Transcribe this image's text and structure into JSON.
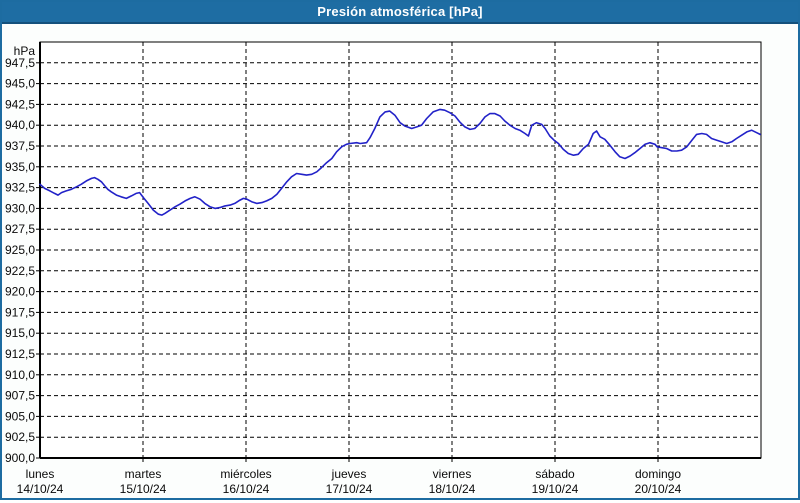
{
  "window": {
    "title": "Presión atmosférica [hPa]"
  },
  "colors": {
    "titlebar_bg": "#1e6da3",
    "titlebar_edge": "#14517c",
    "frame_border": "#1d6ca1",
    "page_bg": "#fcfefd",
    "plot_bg": "#ffffff",
    "grid": "#000000",
    "axis": "#000000",
    "line": "#2222c8",
    "text": "#0a0a0a"
  },
  "chart_data": {
    "type": "line",
    "title": "Presión atmosférica [hPa]",
    "ylabel": "hPa",
    "xlabel": "",
    "ylim": [
      900,
      950
    ],
    "ytick_step": 2.5,
    "grid": "dashed",
    "legend": "none",
    "decimal_separator": ",",
    "ytick_labels": [
      "947,5",
      "945,0",
      "942,5",
      "940,0",
      "937,5",
      "935,0",
      "932,5",
      "930,0",
      "927,5",
      "925,0",
      "922,5",
      "920,0",
      "917,5",
      "915,0",
      "912,5",
      "910,0",
      "907,5",
      "905,0",
      "902,5",
      "900,0"
    ],
    "x_hours_total": 168,
    "x_categories": [
      {
        "day": "lunes",
        "date": "14/10/24"
      },
      {
        "day": "martes",
        "date": "15/10/24"
      },
      {
        "day": "miércoles",
        "date": "16/10/24"
      },
      {
        "day": "jueves",
        "date": "17/10/24"
      },
      {
        "day": "viernes",
        "date": "18/10/24"
      },
      {
        "day": "sábado",
        "date": "19/10/24"
      },
      {
        "day": "domingo",
        "date": "20/10/24"
      }
    ],
    "series": [
      {
        "name": "Presión atmosférica",
        "unit": "hPa",
        "points": [
          [
            0.0,
            932.9
          ],
          [
            1.1,
            932.4
          ],
          [
            2.3,
            932.1
          ],
          [
            3.4,
            931.8
          ],
          [
            4.2,
            931.6
          ],
          [
            5.0,
            931.9
          ],
          [
            6.1,
            932.1
          ],
          [
            7.3,
            932.3
          ],
          [
            8.5,
            932.6
          ],
          [
            9.6,
            932.9
          ],
          [
            10.8,
            933.3
          ],
          [
            12.0,
            933.6
          ],
          [
            12.7,
            933.7
          ],
          [
            13.5,
            933.5
          ],
          [
            14.3,
            933.2
          ],
          [
            15.1,
            932.7
          ],
          [
            15.8,
            932.3
          ],
          [
            16.6,
            932.0
          ],
          [
            17.8,
            931.6
          ],
          [
            18.9,
            931.4
          ],
          [
            20.1,
            931.2
          ],
          [
            21.3,
            931.5
          ],
          [
            22.4,
            931.8
          ],
          [
            23.2,
            931.9
          ],
          [
            24.1,
            931.3
          ],
          [
            25.2,
            930.6
          ],
          [
            26.4,
            929.8
          ],
          [
            27.6,
            929.3
          ],
          [
            28.4,
            929.2
          ],
          [
            29.1,
            929.4
          ],
          [
            30.3,
            929.8
          ],
          [
            31.5,
            930.2
          ],
          [
            32.6,
            930.5
          ],
          [
            33.8,
            930.9
          ],
          [
            35.0,
            931.2
          ],
          [
            36.1,
            931.4
          ],
          [
            37.3,
            931.1
          ],
          [
            38.4,
            930.6
          ],
          [
            39.6,
            930.2
          ],
          [
            40.8,
            930.0
          ],
          [
            41.9,
            930.1
          ],
          [
            43.1,
            930.3
          ],
          [
            44.3,
            930.4
          ],
          [
            45.4,
            930.6
          ],
          [
            46.6,
            931.0
          ],
          [
            47.4,
            931.2
          ],
          [
            48.2,
            931.1
          ],
          [
            49.3,
            930.8
          ],
          [
            50.5,
            930.6
          ],
          [
            51.7,
            930.7
          ],
          [
            52.8,
            930.9
          ],
          [
            54.0,
            931.2
          ],
          [
            55.2,
            931.7
          ],
          [
            56.3,
            932.4
          ],
          [
            57.5,
            933.2
          ],
          [
            58.6,
            933.8
          ],
          [
            59.8,
            934.2
          ],
          [
            61.0,
            934.1
          ],
          [
            62.1,
            934.0
          ],
          [
            63.3,
            934.1
          ],
          [
            64.5,
            934.4
          ],
          [
            65.6,
            934.9
          ],
          [
            66.8,
            935.5
          ],
          [
            68.0,
            936.0
          ],
          [
            69.1,
            936.8
          ],
          [
            70.3,
            937.4
          ],
          [
            71.4,
            937.7
          ],
          [
            72.2,
            937.8
          ],
          [
            73.8,
            937.9
          ],
          [
            74.6,
            937.8
          ],
          [
            76.1,
            937.9
          ],
          [
            76.9,
            938.5
          ],
          [
            78.0,
            939.6
          ],
          [
            79.2,
            941.0
          ],
          [
            80.4,
            941.6
          ],
          [
            81.5,
            941.7
          ],
          [
            82.7,
            941.2
          ],
          [
            83.9,
            940.3
          ],
          [
            85.0,
            939.9
          ],
          [
            86.6,
            939.6
          ],
          [
            87.8,
            939.8
          ],
          [
            88.9,
            940.0
          ],
          [
            90.1,
            940.8
          ],
          [
            91.6,
            941.6
          ],
          [
            93.2,
            941.9
          ],
          [
            94.3,
            941.8
          ],
          [
            95.5,
            941.5
          ],
          [
            96.7,
            941.1
          ],
          [
            97.8,
            940.4
          ],
          [
            99.0,
            939.8
          ],
          [
            100.2,
            939.5
          ],
          [
            101.3,
            939.6
          ],
          [
            102.5,
            940.2
          ],
          [
            103.7,
            941.0
          ],
          [
            104.8,
            941.4
          ],
          [
            106.0,
            941.4
          ],
          [
            107.2,
            941.1
          ],
          [
            108.3,
            940.5
          ],
          [
            109.5,
            940.0
          ],
          [
            110.7,
            939.6
          ],
          [
            111.8,
            939.4
          ],
          [
            113.0,
            939.0
          ],
          [
            113.8,
            938.7
          ],
          [
            114.6,
            940.0
          ],
          [
            115.7,
            940.3
          ],
          [
            116.9,
            940.1
          ],
          [
            117.7,
            939.6
          ],
          [
            118.8,
            938.7
          ],
          [
            119.8,
            938.2
          ],
          [
            120.8,
            937.8
          ],
          [
            121.9,
            937.1
          ],
          [
            123.1,
            936.6
          ],
          [
            124.3,
            936.4
          ],
          [
            125.4,
            936.5
          ],
          [
            126.6,
            937.2
          ],
          [
            127.8,
            937.7
          ],
          [
            128.9,
            939.0
          ],
          [
            129.7,
            939.3
          ],
          [
            130.5,
            938.6
          ],
          [
            131.6,
            938.3
          ],
          [
            132.8,
            937.6
          ],
          [
            134.0,
            936.8
          ],
          [
            135.1,
            936.2
          ],
          [
            136.3,
            936.0
          ],
          [
            137.5,
            936.3
          ],
          [
            138.6,
            936.7
          ],
          [
            139.8,
            937.2
          ],
          [
            141.0,
            937.7
          ],
          [
            142.1,
            937.9
          ],
          [
            143.3,
            937.7
          ],
          [
            143.8,
            937.4
          ],
          [
            144.9,
            937.3
          ],
          [
            146.0,
            937.2
          ],
          [
            147.2,
            936.9
          ],
          [
            148.4,
            936.9
          ],
          [
            149.5,
            937.0
          ],
          [
            150.7,
            937.4
          ],
          [
            151.9,
            938.2
          ],
          [
            153.0,
            938.9
          ],
          [
            154.2,
            939.0
          ],
          [
            155.3,
            938.9
          ],
          [
            156.5,
            938.4
          ],
          [
            157.7,
            938.2
          ],
          [
            158.8,
            938.0
          ],
          [
            160.0,
            937.8
          ],
          [
            161.2,
            938.0
          ],
          [
            162.3,
            938.4
          ],
          [
            163.5,
            938.8
          ],
          [
            164.7,
            939.2
          ],
          [
            165.8,
            939.4
          ],
          [
            167.0,
            939.1
          ],
          [
            167.8,
            938.9
          ]
        ]
      }
    ]
  }
}
